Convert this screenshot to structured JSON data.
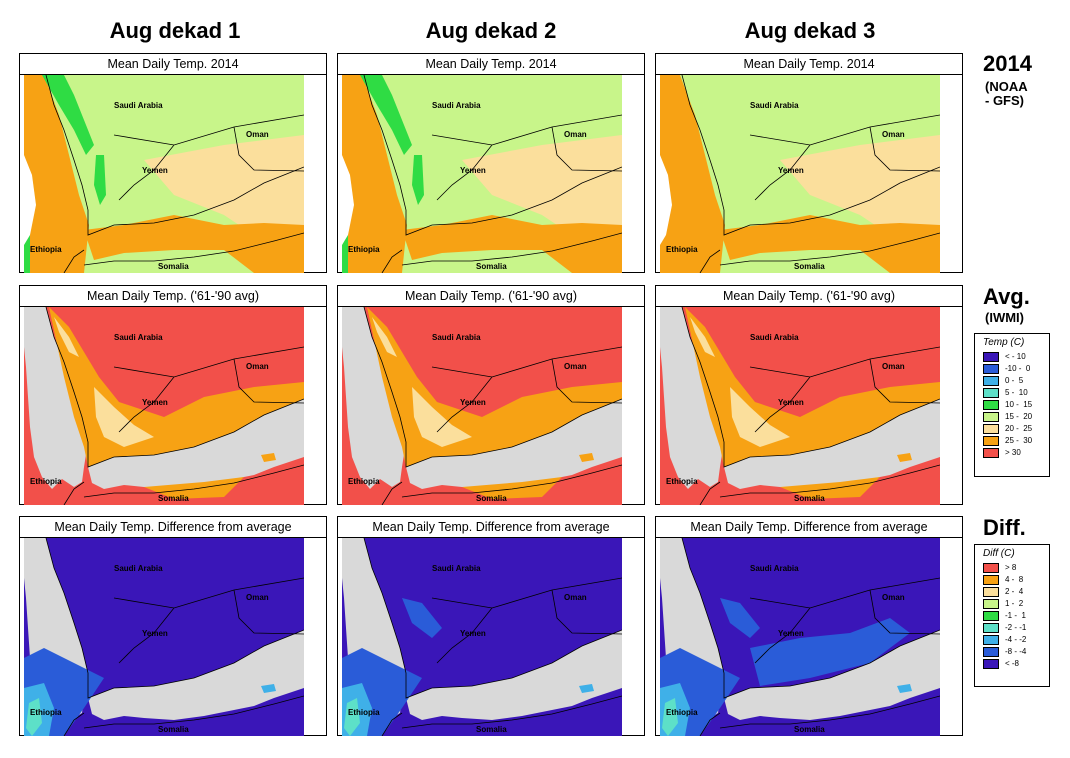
{
  "columns": [
    {
      "label": "Aug dekad 1"
    },
    {
      "label": "Aug dekad 2"
    },
    {
      "label": "Aug dekad 3"
    }
  ],
  "rows": [
    {
      "key": "forecast",
      "label": "2014",
      "sublabel": "(NOAA\n- GFS)",
      "panel_title": "Mean Daily Temp. 2014"
    },
    {
      "key": "average",
      "label": "Avg.",
      "sublabel": "(IWMI)",
      "panel_title": "Mean Daily Temp. ('61-'90 avg)"
    },
    {
      "key": "diff",
      "label": "Diff.",
      "sublabel": "",
      "panel_title": "Mean Daily Temp. Difference from average"
    }
  ],
  "place_labels": {
    "saudi": "Saudi Arabia",
    "oman": "Oman",
    "yemen": "Yemen",
    "ethiopia": "Ethiopia",
    "somalia": "Somalia"
  },
  "temp_legend": {
    "title": "Temp (C)",
    "items": [
      {
        "label": "< - 10",
        "color": "#3a16b8"
      },
      {
        "label": "-10 -  0",
        "color": "#2a5cd8"
      },
      {
        "label": "0 -  5",
        "color": "#3fb0e8"
      },
      {
        "label": "5 -  10",
        "color": "#5de0c8"
      },
      {
        "label": "10 -  15",
        "color": "#2fdc44"
      },
      {
        "label": "15 -  20",
        "color": "#c8f58a"
      },
      {
        "label": "20 -  25",
        "color": "#fbdf9c"
      },
      {
        "label": "25 -  30",
        "color": "#f7a214"
      },
      {
        "label": "> 30",
        "color": "#f2504a"
      }
    ]
  },
  "diff_legend": {
    "title": "Diff (C)",
    "items": [
      {
        "label": "> 8",
        "color": "#f2504a"
      },
      {
        "label": "4 -  8",
        "color": "#f7a214"
      },
      {
        "label": "2 -  4",
        "color": "#fbdf9c"
      },
      {
        "label": "1 -  2",
        "color": "#c8f58a"
      },
      {
        "label": "-1 -  1",
        "color": "#2fdc44"
      },
      {
        "label": "-2 - -1",
        "color": "#5de0c8"
      },
      {
        "label": "-4 - -2",
        "color": "#3fb0e8"
      },
      {
        "label": "-8 - -4",
        "color": "#2a5cd8"
      },
      {
        "label": "< -8",
        "color": "#3a16b8"
      }
    ]
  },
  "map_colors": {
    "sea": "#d9d9d9",
    "forecast_main": "#c8f58a",
    "forecast_warm": "#fbdf9c",
    "forecast_hot": "#f7a214",
    "forecast_cool": "#2fdc44",
    "avg_main": "#f2504a",
    "avg_mid": "#f7a214",
    "avg_cool": "#fbdf9c",
    "diff_main": "#3a16b8",
    "diff_mid": "#2a5cd8",
    "diff_light": "#3fb0e8",
    "diff_cyan": "#5de0c8"
  }
}
